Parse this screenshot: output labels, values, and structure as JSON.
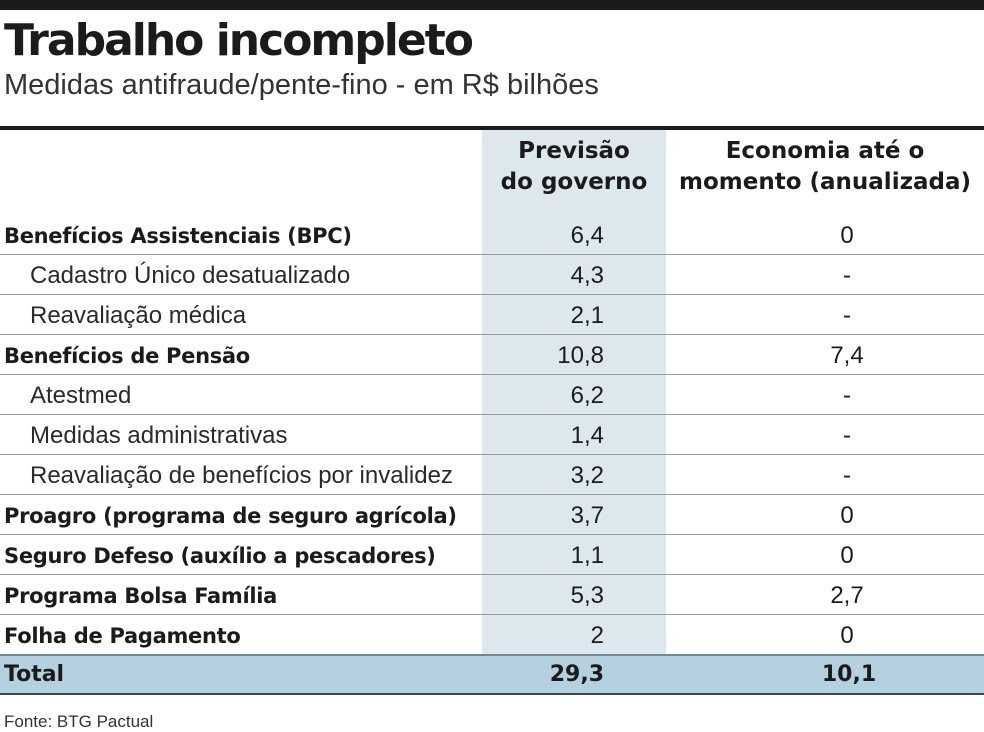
{
  "title": "Trabalho incompleto",
  "subtitle": "Medidas antifraude/pente-fino - em R$ bilhões",
  "source": "Fonte: BTG Pactual",
  "colors": {
    "highlight_column": "#dde7ee",
    "total_row": "#b5d0df",
    "rule": "#1b1b1b"
  },
  "chart_data": {
    "type": "table",
    "columns": [
      {
        "lines": [
          "Previsão",
          "do governo"
        ]
      },
      {
        "lines": [
          "Economia até o",
          "momento (anualizada)"
        ]
      }
    ],
    "rows": [
      {
        "label": "Benefícios Assistenciais (BPC)",
        "level": "main",
        "previsao": "6,4",
        "economia": "0"
      },
      {
        "label": "Cadastro Único desatualizado",
        "level": "sub",
        "previsao": "4,3",
        "economia": "-"
      },
      {
        "label": "Reavaliação médica",
        "level": "sub",
        "previsao": "2,1",
        "economia": "-"
      },
      {
        "label": "Benefícios de Pensão",
        "level": "main",
        "previsao": "10,8",
        "economia": "7,4"
      },
      {
        "label": "Atestmed",
        "level": "sub",
        "previsao": "6,2",
        "economia": "-"
      },
      {
        "label": "Medidas administrativas",
        "level": "sub",
        "previsao": "1,4",
        "economia": "-"
      },
      {
        "label": "Reavaliação de benefícios por invalidez",
        "level": "sub",
        "previsao": "3,2",
        "economia": "-"
      },
      {
        "label": "Proagro (programa de seguro agrícola)",
        "level": "main",
        "previsao": "3,7",
        "economia": "0"
      },
      {
        "label": "Seguro Defeso (auxílio a pescadores)",
        "level": "main",
        "previsao": "1,1",
        "economia": "0"
      },
      {
        "label": "Programa Bolsa Família",
        "level": "main",
        "previsao": "5,3",
        "economia": "2,7"
      },
      {
        "label": "Folha de Pagamento",
        "level": "main",
        "previsao": "2",
        "economia": "0"
      }
    ],
    "total": {
      "label": "Total",
      "previsao": "29,3",
      "economia": "10,1"
    }
  }
}
